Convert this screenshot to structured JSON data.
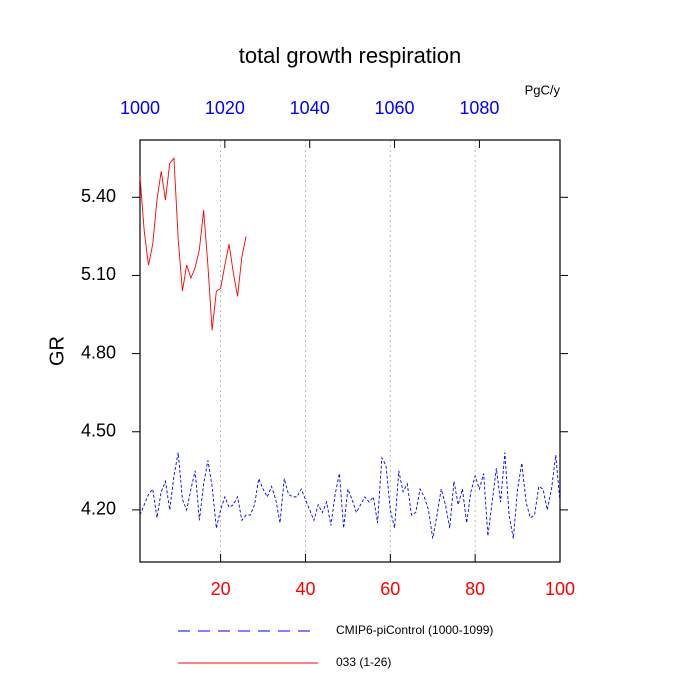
{
  "chart_data": {
    "type": "line",
    "title": "total growth respiration",
    "y_label": "GR",
    "unit": "PgC/y",
    "xlim": [
      1,
      100
    ],
    "xticks": [
      20,
      40,
      60,
      80,
      100
    ],
    "x2lim": [
      1000,
      1099
    ],
    "x2ticks": [
      1000,
      1020,
      1040,
      1060,
      1080
    ],
    "ylim": [
      4.0,
      5.62
    ],
    "yticks": [
      {
        "value": 4.2,
        "label": "4.20"
      },
      {
        "value": 4.5,
        "label": "4.50"
      },
      {
        "value": 4.8,
        "label": "4.80"
      },
      {
        "value": 5.1,
        "label": "5.10"
      },
      {
        "value": 5.4,
        "label": "5.40"
      }
    ],
    "grid": true,
    "series": [
      {
        "name": "CMIP6-piControl (1000-1099)",
        "color": "#0000ff",
        "dash": true,
        "x": [
          1,
          2,
          3,
          4,
          5,
          6,
          7,
          8,
          9,
          10,
          11,
          12,
          13,
          14,
          15,
          16,
          17,
          18,
          19,
          20,
          21,
          22,
          23,
          24,
          25,
          26,
          27,
          28,
          29,
          30,
          31,
          32,
          33,
          34,
          35,
          36,
          37,
          38,
          39,
          40,
          41,
          42,
          43,
          44,
          45,
          46,
          47,
          48,
          49,
          50,
          51,
          52,
          53,
          54,
          55,
          56,
          57,
          58,
          59,
          60,
          61,
          62,
          63,
          64,
          65,
          66,
          67,
          68,
          69,
          70,
          71,
          72,
          73,
          74,
          75,
          76,
          77,
          78,
          79,
          80,
          81,
          82,
          83,
          84,
          85,
          86,
          87,
          88,
          89,
          90,
          91,
          92,
          93,
          94,
          95,
          96,
          97,
          98,
          99,
          100
        ],
        "values": [
          4.18,
          4.22,
          4.26,
          4.28,
          4.17,
          4.27,
          4.31,
          4.2,
          4.33,
          4.42,
          4.24,
          4.2,
          4.28,
          4.35,
          4.16,
          4.3,
          4.39,
          4.29,
          4.13,
          4.2,
          4.25,
          4.21,
          4.22,
          4.25,
          4.16,
          4.18,
          4.18,
          4.22,
          4.32,
          4.28,
          4.25,
          4.29,
          4.24,
          4.15,
          4.32,
          4.26,
          4.25,
          4.25,
          4.28,
          4.24,
          4.2,
          4.16,
          4.22,
          4.19,
          4.23,
          4.14,
          4.26,
          4.34,
          4.13,
          4.28,
          4.24,
          4.19,
          4.22,
          4.25,
          4.23,
          4.25,
          4.15,
          4.4,
          4.37,
          4.2,
          4.13,
          4.35,
          4.27,
          4.3,
          4.18,
          4.19,
          4.28,
          4.25,
          4.2,
          4.09,
          4.18,
          4.28,
          4.22,
          4.13,
          4.31,
          4.22,
          4.28,
          4.15,
          4.27,
          4.33,
          4.28,
          4.34,
          4.1,
          4.23,
          4.36,
          4.23,
          4.42,
          4.18,
          4.09,
          4.28,
          4.38,
          4.23,
          4.17,
          4.18,
          4.29,
          4.28,
          4.2,
          4.28,
          4.41,
          4.23
        ]
      },
      {
        "name": "033 (1-26)",
        "color": "#ff0000",
        "dash": false,
        "x": [
          1,
          2,
          3,
          4,
          5,
          6,
          7,
          8,
          9,
          10,
          11,
          12,
          13,
          14,
          15,
          16,
          17,
          18,
          19,
          20,
          21,
          22,
          23,
          24,
          25,
          26
        ],
        "values": [
          5.48,
          5.27,
          5.14,
          5.22,
          5.39,
          5.5,
          5.39,
          5.53,
          5.55,
          5.24,
          5.04,
          5.14,
          5.09,
          5.13,
          5.2,
          5.35,
          5.14,
          4.89,
          5.04,
          5.05,
          5.14,
          5.22,
          5.11,
          5.02,
          5.17,
          5.25
        ]
      }
    ]
  }
}
